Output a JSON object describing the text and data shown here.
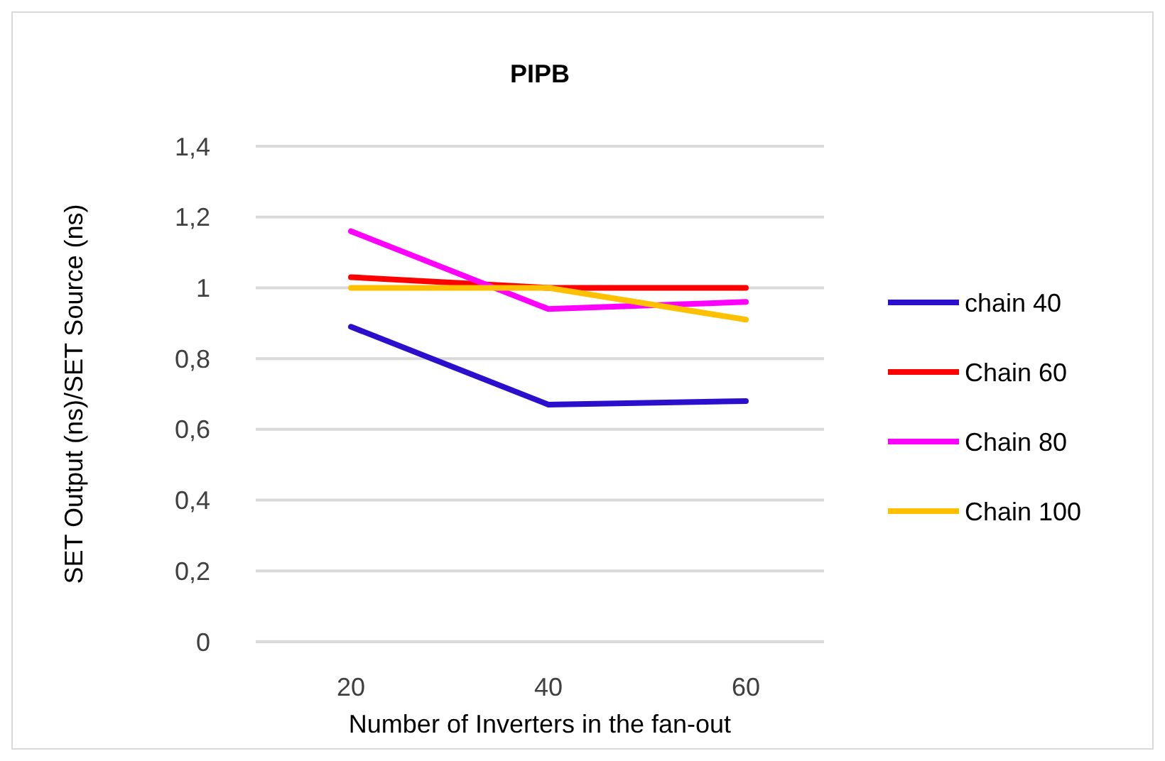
{
  "chart_data": {
    "type": "line",
    "title": "PIPB",
    "xlabel": "Number of Inverters in the fan-out",
    "ylabel": "SET Output (ns)/SET Source (ns)",
    "categories": [
      "20",
      "40",
      "60"
    ],
    "series": [
      {
        "name": "chain 40",
        "color": "#2b0fcc",
        "values": [
          0.89,
          0.67,
          0.68
        ]
      },
      {
        "name": "Chain 60",
        "color": "#ff0000",
        "values": [
          1.03,
          1.0,
          1.0
        ]
      },
      {
        "name": "Chain 80",
        "color": "#ff00ff",
        "values": [
          1.16,
          0.94,
          0.96
        ]
      },
      {
        "name": "Chain 100",
        "color": "#ffc000",
        "values": [
          1.0,
          1.0,
          0.91
        ]
      }
    ],
    "ylim": [
      0,
      1.4
    ],
    "yticks": [
      {
        "value": 0,
        "label": "0"
      },
      {
        "value": 0.2,
        "label": "0,2"
      },
      {
        "value": 0.4,
        "label": "0,4"
      },
      {
        "value": 0.6,
        "label": "0,6"
      },
      {
        "value": 0.8,
        "label": "0,8"
      },
      {
        "value": 1,
        "label": "1"
      },
      {
        "value": 1.2,
        "label": "1,2"
      },
      {
        "value": 1.4,
        "label": "1,4"
      }
    ],
    "grid": "y",
    "legend": "right",
    "marker": "none",
    "line_style": "solid"
  }
}
